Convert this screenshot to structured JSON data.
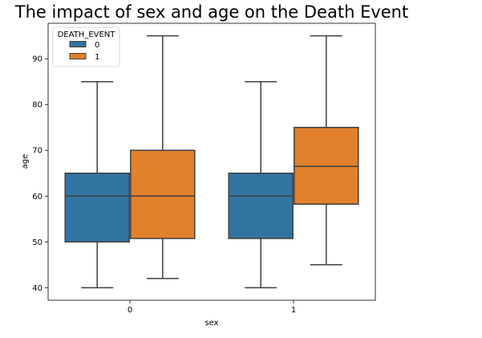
{
  "chart_data": {
    "type": "boxplot",
    "title": "The impact of sex and age on the Death Event",
    "xlabel": "sex",
    "ylabel": "age",
    "categories": [
      "0",
      "1"
    ],
    "ylim": [
      37.25,
      97.75
    ],
    "yticks": [
      40,
      50,
      60,
      70,
      80,
      90
    ],
    "grid": false,
    "legend": {
      "title": "DEATH_EVENT",
      "placement": "top-left",
      "entries": [
        "0",
        "1"
      ]
    },
    "series": [
      {
        "name": "0",
        "color": "#3274a1",
        "boxes": [
          {
            "category": "0",
            "whisker_low": 40,
            "q1": 50,
            "median": 60,
            "q3": 65,
            "whisker_high": 85
          },
          {
            "category": "1",
            "whisker_low": 40,
            "q1": 50.75,
            "median": 60,
            "q3": 65,
            "whisker_high": 85
          }
        ]
      },
      {
        "name": "1",
        "color": "#e1812c",
        "boxes": [
          {
            "category": "0",
            "whisker_low": 42,
            "q1": 50.75,
            "median": 60,
            "q3": 70,
            "whisker_high": 95
          },
          {
            "category": "1",
            "whisker_low": 45,
            "q1": 58.25,
            "median": 66.5,
            "q3": 75,
            "whisker_high": 95
          }
        ]
      }
    ]
  }
}
